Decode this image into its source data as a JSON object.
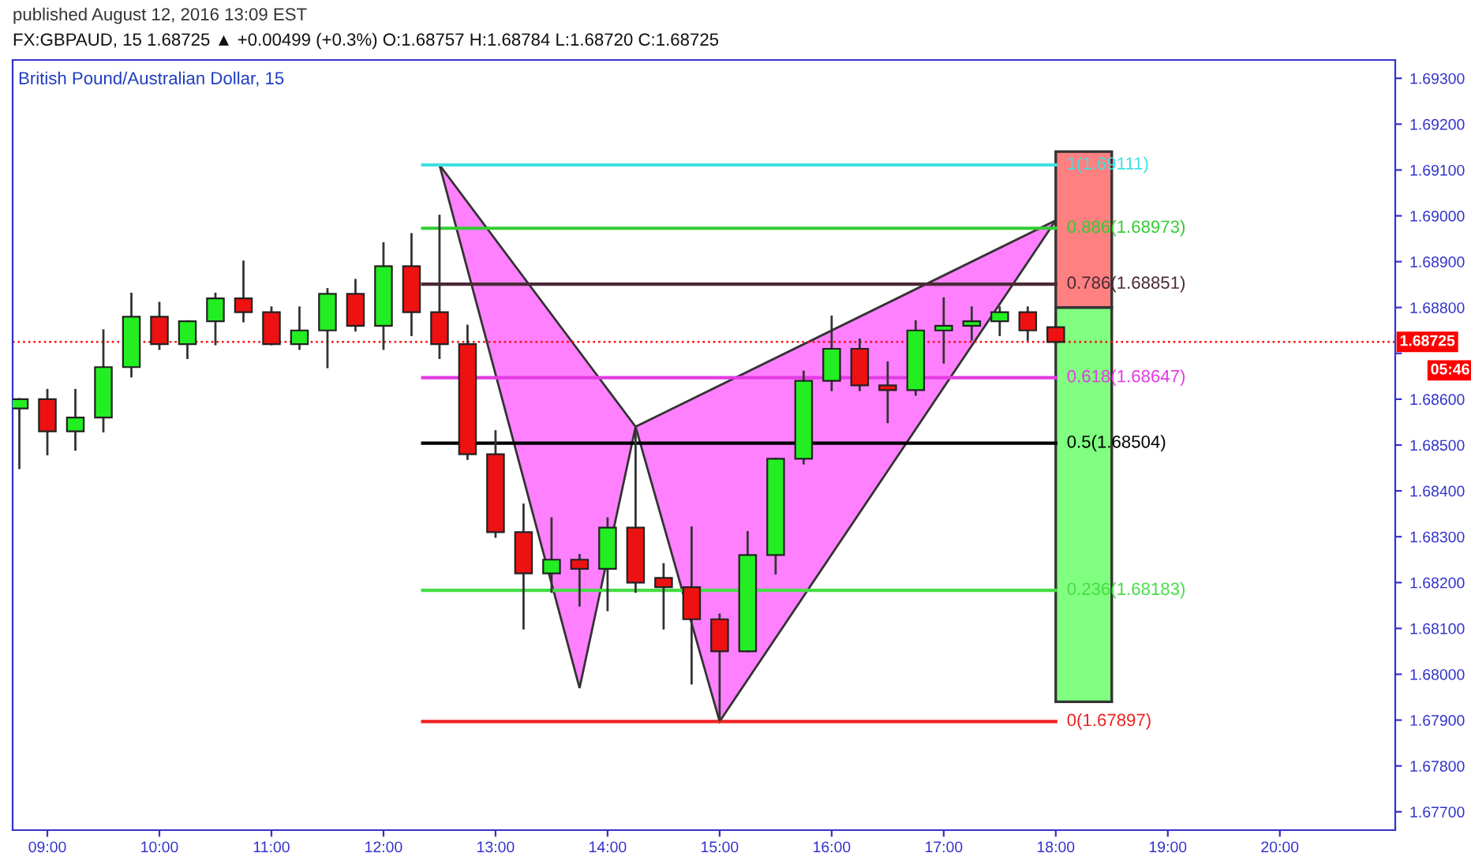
{
  "chart_data": {
    "type": "candlestick",
    "title": "British Pound/Australian Dollar, 15",
    "subtitle": "FX:GBPAUD, 15 1.68725 ▲ +0.00499 (+0.3%) O:1.68757 H:1.68784 L:1.68720 C:1.68725",
    "annotations": [
      "published August 12, 2016 13:09 EST",
      "05:46"
    ],
    "x": [
      8.75,
      9.0,
      9.25,
      9.5,
      9.75,
      10.0,
      10.25,
      10.5,
      10.75,
      11.0,
      11.25,
      11.5,
      11.75,
      12.0,
      12.25,
      12.5,
      12.75,
      13.0,
      13.25,
      13.5,
      13.75,
      14.0,
      14.25,
      14.5,
      14.75,
      15.0,
      15.25,
      15.5,
      15.75,
      16.0,
      16.25,
      16.5,
      16.75,
      17.0,
      17.25,
      17.5,
      17.75,
      18.0
    ],
    "ohlc": [
      [
        1.6858,
        1.686,
        1.6845,
        1.686
      ],
      [
        1.686,
        1.6862,
        1.6848,
        1.6853
      ],
      [
        1.6853,
        1.6862,
        1.6849,
        1.6856
      ],
      [
        1.6856,
        1.6875,
        1.6853,
        1.6867
      ],
      [
        1.6867,
        1.6883,
        1.6865,
        1.6878
      ],
      [
        1.6878,
        1.6881,
        1.6871,
        1.6872
      ],
      [
        1.6872,
        1.6877,
        1.6869,
        1.6877
      ],
      [
        1.6877,
        1.6883,
        1.6872,
        1.6882
      ],
      [
        1.6882,
        1.689,
        1.6877,
        1.6879
      ],
      [
        1.6879,
        1.688,
        1.6872,
        1.6872
      ],
      [
        1.6872,
        1.688,
        1.6871,
        1.6875
      ],
      [
        1.6875,
        1.6884,
        1.6867,
        1.6883
      ],
      [
        1.6883,
        1.6886,
        1.6875,
        1.6876
      ],
      [
        1.6876,
        1.6894,
        1.6871,
        1.6889
      ],
      [
        1.6889,
        1.6896,
        1.6874,
        1.6879
      ],
      [
        1.6879,
        1.69,
        1.6869,
        1.6872
      ],
      [
        1.6872,
        1.6876,
        1.6847,
        1.6848
      ],
      [
        1.6848,
        1.6853,
        1.683,
        1.6831
      ],
      [
        1.6831,
        1.6837,
        1.681,
        1.6822
      ],
      [
        1.6822,
        1.6834,
        1.6818,
        1.6825
      ],
      [
        1.6825,
        1.6826,
        1.6815,
        1.6823
      ],
      [
        1.6823,
        1.6834,
        1.6814,
        1.6832
      ],
      [
        1.6832,
        1.6854,
        1.6818,
        1.682
      ],
      [
        1.6821,
        1.6824,
        1.681,
        1.6819
      ],
      [
        1.6819,
        1.6832,
        1.6798,
        1.6812
      ],
      [
        1.6812,
        1.6813,
        1.679,
        1.6805
      ],
      [
        1.6805,
        1.6831,
        1.6805,
        1.6826
      ],
      [
        1.6826,
        1.6847,
        1.6822,
        1.6847
      ],
      [
        1.6847,
        1.6866,
        1.6846,
        1.6864
      ],
      [
        1.6864,
        1.6878,
        1.6862,
        1.6871
      ],
      [
        1.6871,
        1.6873,
        1.6862,
        1.6863
      ],
      [
        1.6863,
        1.6868,
        1.6855,
        1.6862
      ],
      [
        1.6862,
        1.6877,
        1.6861,
        1.6875
      ],
      [
        1.6875,
        1.6882,
        1.6868,
        1.6876
      ],
      [
        1.6876,
        1.688,
        1.6873,
        1.6877
      ],
      [
        1.6877,
        1.688,
        1.6874,
        1.6879
      ],
      [
        1.6879,
        1.688,
        1.6873,
        1.6875
      ],
      [
        1.68757,
        1.68784,
        1.6872,
        1.68725
      ]
    ],
    "colors": [
      "#22ee22",
      "#ee1111",
      "#22ee22",
      "#22ee22",
      "#22ee22",
      "#ee1111",
      "#22ee22",
      "#22ee22",
      "#ee1111",
      "#ee1111",
      "#22ee22",
      "#22ee22",
      "#ee1111",
      "#22ee22",
      "#ee1111",
      "#ee1111",
      "#ee1111",
      "#ee1111",
      "#ee1111",
      "#22ee22",
      "#ee1111",
      "#22ee22",
      "#ee1111",
      "#ee1111",
      "#ee1111",
      "#ee1111",
      "#22ee22",
      "#22ee22",
      "#22ee22",
      "#22ee22",
      "#ee1111",
      "#ee1111",
      "#22ee22",
      "#22ee22",
      "#22ee22",
      "#22ee22",
      "#ee1111",
      "#ee1111"
    ],
    "series": [
      {
        "type": "area",
        "color": "#ff80ff",
        "x": [
          12.5,
          13.75,
          14.25
        ],
        "values": [
          1.69111,
          1.6797,
          1.6854
        ]
      },
      {
        "type": "area",
        "color": "#ff80ff",
        "x": [
          14.25,
          15.0,
          18.0
        ],
        "values": [
          1.6854,
          1.67897,
          1.6899
        ]
      },
      {
        "type": "bar",
        "color": "#ff8080",
        "x": [
          18.25
        ],
        "base": [
          1.688
        ],
        "values": [
          0.0034
        ]
      },
      {
        "type": "bar",
        "color": "#80ff80",
        "x": [
          18.25
        ],
        "base": [
          1.6794
        ],
        "values": [
          0.0086
        ]
      },
      {
        "type": "line",
        "name": "1(1.69111)",
        "color": "#40e0e0",
        "x": [
          12.35,
          18.0
        ],
        "values": [
          1.69111,
          1.69111
        ]
      },
      {
        "type": "line",
        "name": "0.886(1.68973)",
        "color": "#33cc33",
        "x": [
          12.35,
          18.0
        ],
        "values": [
          1.68973,
          1.68973
        ]
      },
      {
        "type": "line",
        "name": "0.786(1.68851)",
        "color": "#4a2a35",
        "x": [
          12.35,
          18.0
        ],
        "values": [
          1.68851,
          1.68851
        ]
      },
      {
        "type": "line",
        "name": "0.618(1.68647)",
        "color": "#e33be3",
        "x": [
          12.35,
          18.0
        ],
        "values": [
          1.68647,
          1.68647
        ]
      },
      {
        "type": "line",
        "name": "0.5(1.68504)",
        "color": "#000000",
        "x": [
          12.35,
          18.0
        ],
        "values": [
          1.68504,
          1.68504
        ]
      },
      {
        "type": "line",
        "name": "0.236(1.68183)",
        "color": "#44dd44",
        "x": [
          12.35,
          18.0
        ],
        "values": [
          1.68183,
          1.68183
        ]
      },
      {
        "type": "line",
        "name": "0(1.67897)",
        "color": "#ee2222",
        "x": [
          12.35,
          18.0
        ],
        "values": [
          1.67897,
          1.67897
        ]
      }
    ],
    "ref_lines": [
      {
        "axis": "y",
        "value": 1.68725,
        "label": "1.68725",
        "color": "#ff0000",
        "line_style": "dotted"
      }
    ],
    "xlim": [
      8.69,
      21.03
    ],
    "ylim": [
      1.6766,
      1.6934
    ],
    "xticks": [
      {
        "value": 9,
        "label": "09:00"
      },
      {
        "value": 10,
        "label": "10:00"
      },
      {
        "value": 11,
        "label": "11:00"
      },
      {
        "value": 12,
        "label": "12:00"
      },
      {
        "value": 13,
        "label": "13:00"
      },
      {
        "value": 14,
        "label": "14:00"
      },
      {
        "value": 15,
        "label": "15:00"
      },
      {
        "value": 16,
        "label": "16:00"
      },
      {
        "value": 17,
        "label": "17:00"
      },
      {
        "value": 18,
        "label": "18:00"
      },
      {
        "value": 19,
        "label": "19:00"
      },
      {
        "value": 20,
        "label": "20:00"
      }
    ],
    "yticks": [
      {
        "value": 1.677,
        "label": "1.67700"
      },
      {
        "value": 1.678,
        "label": "1.67800"
      },
      {
        "value": 1.679,
        "label": "1.67900"
      },
      {
        "value": 1.68,
        "label": "1.68000"
      },
      {
        "value": 1.681,
        "label": "1.68100"
      },
      {
        "value": 1.682,
        "label": "1.68200"
      },
      {
        "value": 1.683,
        "label": "1.68300"
      },
      {
        "value": 1.684,
        "label": "1.68400"
      },
      {
        "value": 1.685,
        "label": "1.68500"
      },
      {
        "value": 1.686,
        "label": "1.68600"
      },
      {
        "value": 1.687,
        "label": null
      },
      {
        "value": 1.688,
        "label": "1.68800"
      },
      {
        "value": 1.689,
        "label": "1.68900"
      },
      {
        "value": 1.69,
        "label": "1.69000"
      },
      {
        "value": 1.691,
        "label": "1.69100"
      },
      {
        "value": 1.692,
        "label": "1.69200"
      },
      {
        "value": 1.693,
        "label": "1.69300"
      }
    ],
    "grid": false,
    "legend": false
  }
}
